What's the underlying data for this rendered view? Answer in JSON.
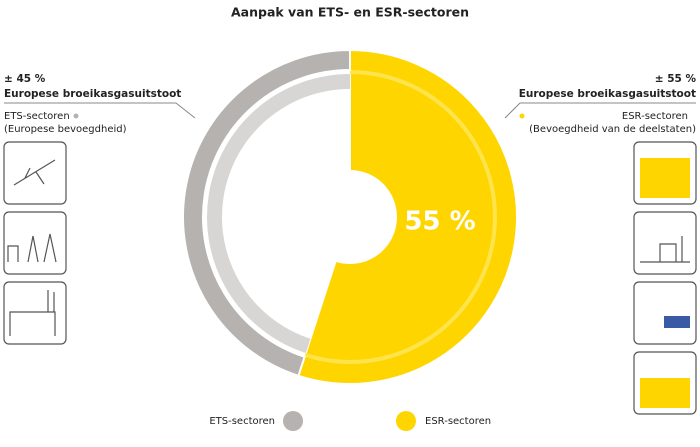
{
  "chart_data": {
    "type": "pie",
    "title": "Aanpak van ETS- en ESR-sectoren",
    "categories": [
      "ETS-sectoren",
      "ESR-sectoren"
    ],
    "values": [
      45,
      55
    ],
    "value_labels": [
      "± 45 %",
      "± 55 %"
    ],
    "colors": [
      "#b5b2b0",
      "#ffd500"
    ],
    "center_label": "55 %",
    "annotations": [
      {
        "title": "Europese broeikasgasuitstoot",
        "subtitle": "(Europese bevoegdheid)"
      },
      {
        "title": "Europese broeikasgasuitstoot",
        "subtitle": "(Bevoegdheid van de deelstaten)"
      }
    ]
  }
}
